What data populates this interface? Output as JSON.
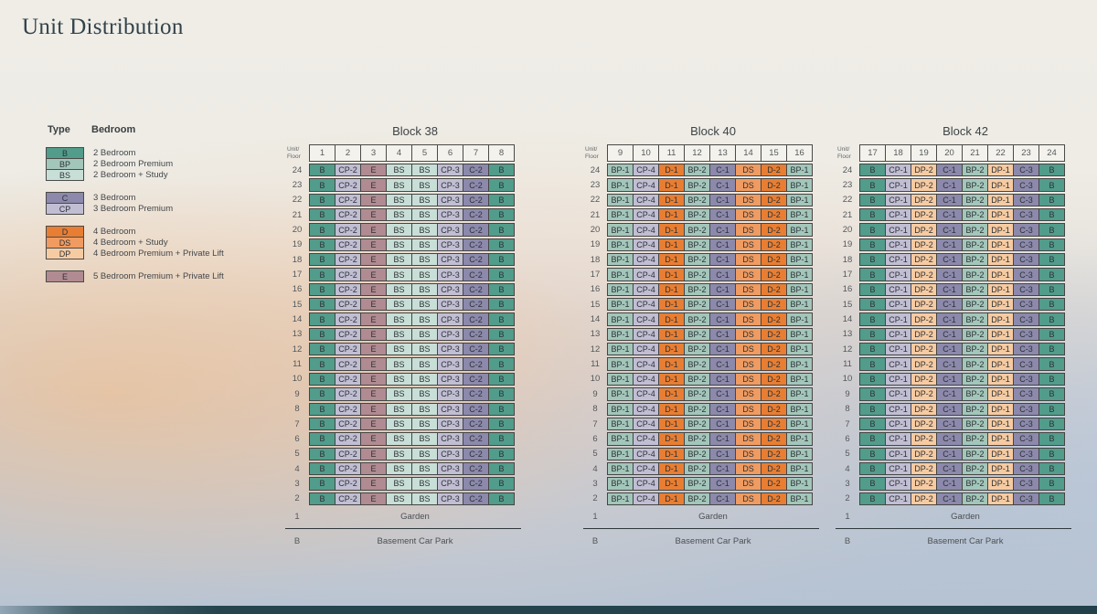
{
  "page": {
    "title": "Unit Distribution"
  },
  "legend": {
    "type_header": "Type",
    "bedroom_header": "Bedroom",
    "groups": [
      {
        "items": [
          {
            "code": "B",
            "label": "2 Bedroom"
          },
          {
            "code": "BP",
            "label": "2 Bedroom Premium"
          },
          {
            "code": "BS",
            "label": "2 Bedroom + Study"
          }
        ]
      },
      {
        "items": [
          {
            "code": "C",
            "label": "3 Bedroom"
          },
          {
            "code": "CP",
            "label": "3 Bedroom Premium"
          }
        ]
      },
      {
        "items": [
          {
            "code": "D",
            "label": "4 Bedroom"
          },
          {
            "code": "DS",
            "label": "4 Bedroom + Study"
          },
          {
            "code": "DP",
            "label": "4 Bedroom Premium + Private Lift"
          }
        ]
      },
      {
        "items": [
          {
            "code": "E",
            "label": "5 Bedroom Premium + Private Lift"
          }
        ]
      }
    ]
  },
  "type_colors": {
    "B": "#529c8b",
    "BP": "#a3c6ba",
    "BS": "#c8dfd7",
    "C": "#8c89ac",
    "CP": "#c1bed4",
    "D": "#e87e33",
    "DS": "#f09b61",
    "DP": "#f7cba2",
    "E": "#b18b92"
  },
  "grid": {
    "unit_floor_label_top": "Unit/",
    "unit_floor_label_bottom": "Floor",
    "floors": [
      24,
      23,
      22,
      21,
      20,
      19,
      18,
      17,
      16,
      15,
      14,
      13,
      12,
      11,
      10,
      9,
      8,
      7,
      6,
      5,
      4,
      3,
      2
    ],
    "garden_floor": "1",
    "garden_label": "Garden",
    "basement_floor": "B",
    "basement_label": "Basement Car Park"
  },
  "blocks": [
    {
      "title": "Block 38",
      "units": [
        "1",
        "2",
        "3",
        "4",
        "5",
        "6",
        "7",
        "8"
      ],
      "stack": [
        "B",
        "CP-2",
        "E",
        "BS",
        "BS",
        "CP-3",
        "C-2",
        "B"
      ]
    },
    {
      "title": "Block 40",
      "units": [
        "9",
        "10",
        "11",
        "12",
        "13",
        "14",
        "15",
        "16"
      ],
      "stack": [
        "BP-1",
        "CP-4",
        "D-1",
        "BP-2",
        "C-1",
        "DS",
        "D-2",
        "BP-1"
      ]
    },
    {
      "title": "Block 42",
      "units": [
        "17",
        "18",
        "19",
        "20",
        "21",
        "22",
        "23",
        "24"
      ],
      "stack": [
        "B",
        "CP-1",
        "DP-2",
        "C-1",
        "BP-2",
        "DP-1",
        "C-3",
        "B"
      ]
    }
  ],
  "footer_band_color": "#22414b"
}
